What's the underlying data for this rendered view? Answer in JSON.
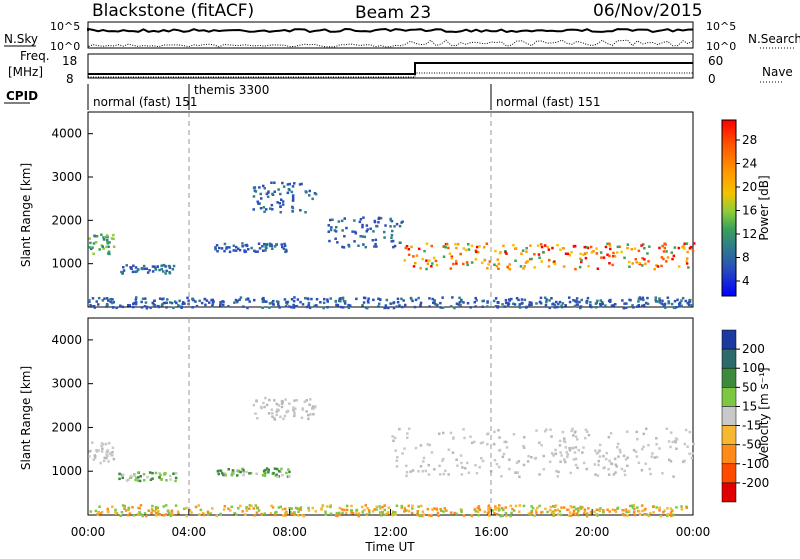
{
  "header": {
    "station": "Blackstone (fitACF)",
    "beam": "Beam 23",
    "date": "06/Nov/2015"
  },
  "top_panels": {
    "nsky_label": "N.Sky",
    "nsky_ticks": [
      "10^5",
      "10^0"
    ],
    "nsearch_label": "N.Search",
    "nsearch_ticks": [
      "10^5",
      "10^0"
    ],
    "freq_label": "Freq.",
    "freq_unit": "[MHz]",
    "freq_ticks": [
      "18",
      "8"
    ],
    "nave_label": "Nave",
    "nave_ticks": [
      "60",
      "0"
    ],
    "cpid_label": "CPID",
    "cpid_segments": [
      {
        "name": "normal (fast) 151",
        "start_h": 0
      },
      {
        "name": "themis 3300",
        "start_h": 4
      },
      {
        "name": "normal (fast) 151",
        "start_h": 16
      }
    ]
  },
  "chart_data": [
    {
      "type": "heatmap",
      "ylabel": "Slant Range [km]",
      "ylim": [
        0,
        4500
      ],
      "yticks": [
        1000,
        2000,
        3000,
        4000
      ],
      "xlim": [
        0,
        24
      ],
      "colorbar": {
        "label": "Power [dB]",
        "ticks": [
          "28",
          "24",
          "20",
          "16",
          "12",
          "8",
          "4"
        ],
        "colors": [
          "#ff0000",
          "#ff5a00",
          "#ff9a00",
          "#f2c400",
          "#a8d23a",
          "#52b14a",
          "#2a9a68",
          "#3e7a8e",
          "#3050b8",
          "#2030d8",
          "#0000ff"
        ]
      },
      "bands": [
        {
          "t0": 0.0,
          "t1": 1.0,
          "r0": 1200,
          "r1": 1700,
          "level": "mid"
        },
        {
          "t0": 1.2,
          "t1": 3.5,
          "r0": 800,
          "r1": 1000,
          "level": "low"
        },
        {
          "t0": 6.5,
          "t1": 9.0,
          "r0": 2200,
          "r1": 2900,
          "level": "low"
        },
        {
          "t0": 5.0,
          "t1": 8.0,
          "r0": 1300,
          "r1": 1500,
          "level": "low"
        },
        {
          "t0": 9.5,
          "t1": 12.5,
          "r0": 1400,
          "r1": 2100,
          "level": "low"
        },
        {
          "t0": 12.5,
          "t1": 24.0,
          "r0": 900,
          "r1": 1500,
          "level": "high"
        },
        {
          "t0": 0.0,
          "t1": 24.0,
          "r0": 0,
          "r1": 250,
          "level": "low"
        }
      ]
    },
    {
      "type": "heatmap",
      "ylabel": "Slant Range [km]",
      "ylim": [
        0,
        4500
      ],
      "yticks": [
        1000,
        2000,
        3000,
        4000
      ],
      "xlim": [
        0,
        24
      ],
      "xticks": [
        "00:00",
        "04:00",
        "08:00",
        "12:00",
        "16:00",
        "20:00",
        "00:00"
      ],
      "xlabel": "Time UT",
      "colorbar": {
        "label": "Velocity [m s⁻¹]",
        "ticks": [
          "200",
          "100",
          "50",
          "15",
          "-15",
          "-50",
          "-100",
          "-200"
        ],
        "colors": [
          "#1a3aa0",
          "#2e6a6a",
          "#3c8a3c",
          "#7cc842",
          "#c8c8c8",
          "#f7b733",
          "#ff8a1a",
          "#ff4a00",
          "#e00000"
        ]
      },
      "bands": [
        {
          "t0": 0.0,
          "t1": 1.0,
          "r0": 1200,
          "r1": 1700,
          "level": "gray"
        },
        {
          "t0": 1.2,
          "t1": 3.5,
          "r0": 800,
          "r1": 1000,
          "level": "green"
        },
        {
          "t0": 6.5,
          "t1": 9.0,
          "r0": 2200,
          "r1": 2700,
          "level": "gray"
        },
        {
          "t0": 5.0,
          "t1": 8.0,
          "r0": 900,
          "r1": 1100,
          "level": "green"
        },
        {
          "t0": 12.0,
          "t1": 24.0,
          "r0": 900,
          "r1": 2000,
          "level": "gray"
        },
        {
          "t0": 0.0,
          "t1": 24.0,
          "r0": 0,
          "r1": 250,
          "level": "orange"
        }
      ]
    }
  ]
}
